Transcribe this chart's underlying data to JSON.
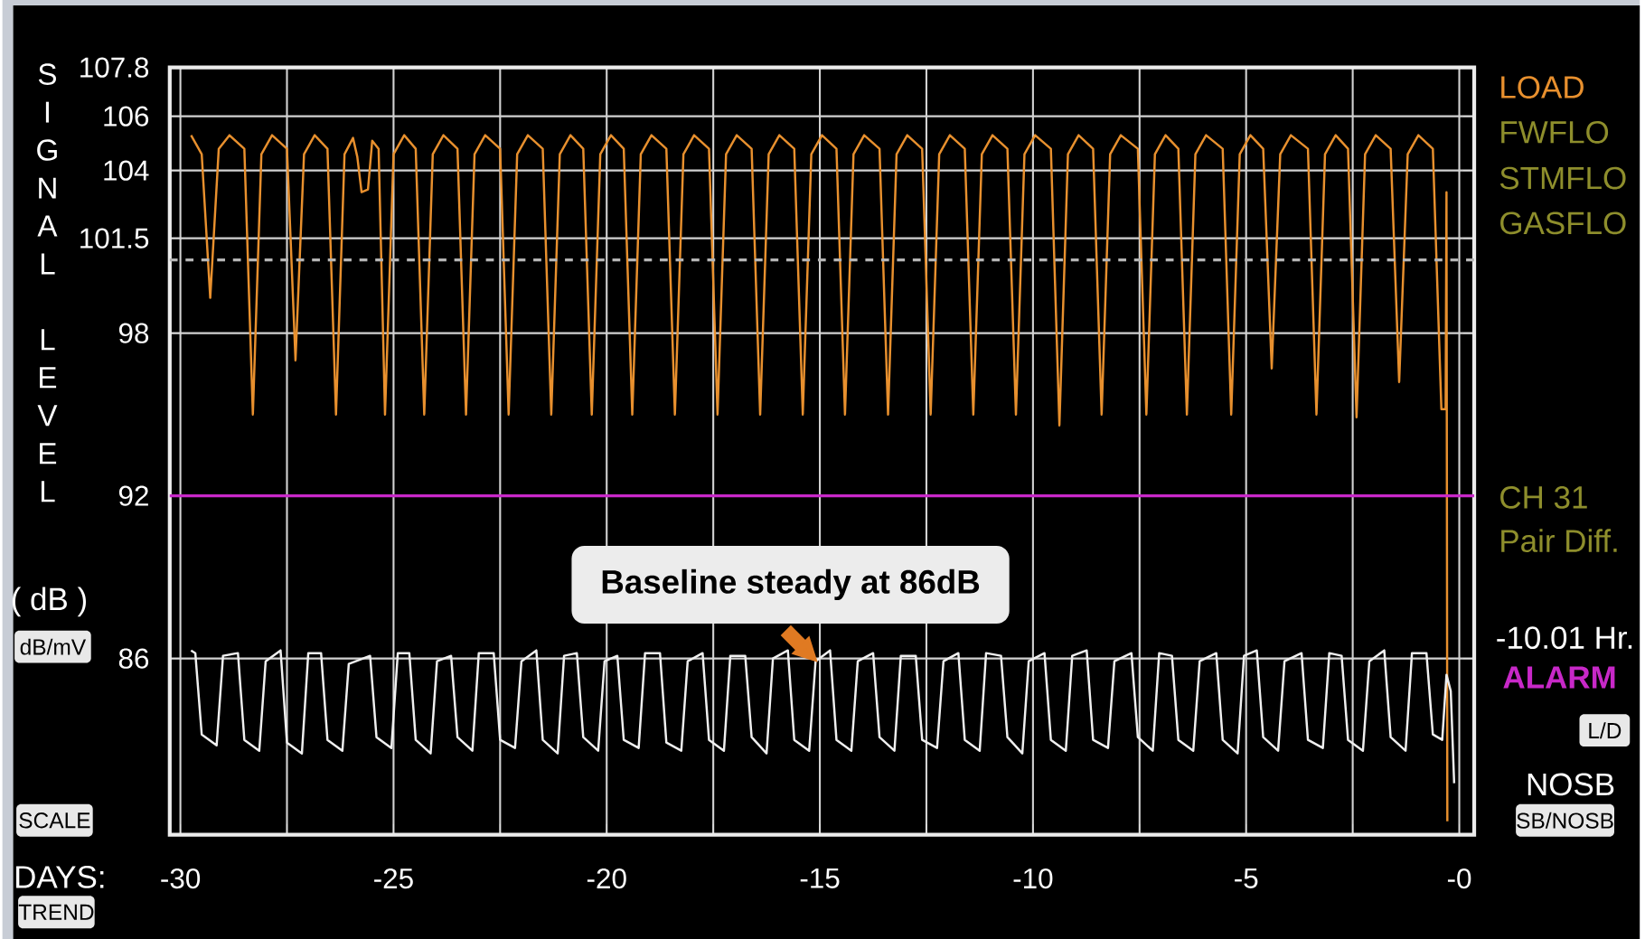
{
  "chart_data": {
    "type": "line",
    "xlabel": "DAYS:",
    "ylabel": "SIGNAL LEVEL",
    "xlim": [
      -30.25,
      0.35
    ],
    "ylim": [
      79.5,
      107.8
    ],
    "xticks": [
      -30,
      {
        "value": -27.5,
        "label": null
      },
      -25,
      {
        "value": -22.5,
        "label": null
      },
      -20,
      {
        "value": -17.5,
        "label": null
      },
      -15,
      {
        "value": -12.5,
        "label": null
      },
      -10,
      {
        "value": -7.5,
        "label": null
      },
      -5,
      {
        "value": -2.5,
        "label": null
      },
      {
        "value": 0,
        "label": "-0"
      }
    ],
    "yticks": [
      86,
      92,
      98,
      101.5,
      104,
      106,
      107.8
    ],
    "grid": true,
    "legend": "right",
    "series": [
      {
        "name": "LOAD",
        "color": "#e8902e",
        "x": [
          -29.75,
          -29.5,
          -29.3,
          -29.1,
          -28.85,
          -28.5,
          -28.3,
          -28.1,
          -27.85,
          -27.5,
          -27.3,
          -27.1,
          -26.85,
          -26.55,
          -26.35,
          -26.15,
          -25.95,
          -25.85,
          -25.75,
          -25.6,
          -25.5,
          -25.35,
          -25.2,
          -25.0,
          -24.75,
          -24.48,
          -24.28,
          -24.08,
          -23.83,
          -23.5,
          -23.3,
          -23.1,
          -22.85,
          -22.5,
          -22.3,
          -22.1,
          -21.85,
          -21.5,
          -21.3,
          -21.1,
          -20.85,
          -20.55,
          -20.35,
          -20.15,
          -19.9,
          -19.6,
          -19.4,
          -19.2,
          -18.95,
          -18.6,
          -18.4,
          -18.2,
          -17.95,
          -17.6,
          -17.4,
          -17.2,
          -16.95,
          -16.6,
          -16.4,
          -16.2,
          -15.95,
          -15.6,
          -15.4,
          -15.2,
          -14.95,
          -14.61,
          -14.41,
          -14.21,
          -13.96,
          -13.6,
          -13.4,
          -13.2,
          -12.95,
          -12.6,
          -12.4,
          -12.2,
          -11.95,
          -11.6,
          -11.4,
          -11.2,
          -10.95,
          -10.6,
          -10.4,
          -10.2,
          -9.95,
          -9.58,
          -9.38,
          -9.18,
          -8.93,
          -8.59,
          -8.39,
          -8.19,
          -7.94,
          -7.54,
          -7.34,
          -7.14,
          -6.89,
          -6.59,
          -6.39,
          -6.19,
          -5.94,
          -5.55,
          -5.35,
          -5.15,
          -4.9,
          -4.6,
          -4.4,
          -4.2,
          -3.95,
          -3.55,
          -3.35,
          -3.15,
          -2.9,
          -2.61,
          -2.41,
          -2.21,
          -1.96,
          -1.61,
          -1.41,
          -1.21,
          -0.96,
          -0.62,
          -0.42,
          -0.32,
          -0.3,
          -0.28
        ],
        "values": [
          105.3,
          104.6,
          99.3,
          104.8,
          105.3,
          104.8,
          95,
          104.6,
          105.3,
          104.8,
          97,
          104.6,
          105.3,
          104.8,
          95,
          104.6,
          105.2,
          104.5,
          103.2,
          103.3,
          105.1,
          104.8,
          95,
          104.6,
          105.3,
          104.8,
          95,
          104.6,
          105.3,
          104.8,
          95,
          104.6,
          105.3,
          104.8,
          95,
          104.6,
          105.3,
          104.8,
          95,
          104.6,
          105.3,
          104.8,
          95,
          104.6,
          105.3,
          104.8,
          95,
          104.6,
          105.3,
          104.8,
          95,
          104.6,
          105.3,
          104.8,
          95,
          104.6,
          105.3,
          104.8,
          95,
          104.6,
          105.3,
          104.8,
          95,
          104.6,
          105.3,
          104.8,
          95,
          104.6,
          105.3,
          104.8,
          95,
          104.6,
          105.3,
          104.8,
          95,
          104.6,
          105.3,
          104.8,
          95,
          104.6,
          105.3,
          104.8,
          95,
          104.6,
          105.3,
          104.8,
          94.6,
          104.6,
          105.3,
          104.8,
          95,
          104.6,
          105.3,
          104.8,
          95,
          104.6,
          105.3,
          104.8,
          95,
          104.6,
          105.3,
          104.8,
          95,
          104.6,
          105.3,
          104.8,
          96.7,
          104.6,
          105.3,
          104.8,
          95,
          104.6,
          105.3,
          104.8,
          94.9,
          104.6,
          105.3,
          104.8,
          96.2,
          104.6,
          105.3,
          104.8,
          95.2,
          95.2,
          103.2,
          80
        ]
      },
      {
        "color": "#f0f0f0",
        "x": [
          -29.75,
          -29.65,
          -29.5,
          -29.15,
          -29.0,
          -28.65,
          -28.5,
          -28.15,
          -28.0,
          -27.65,
          -27.5,
          -27.15,
          -27.0,
          -26.7,
          -26.55,
          -26.2,
          -26.05,
          -25.55,
          -25.4,
          -25.05,
          -24.9,
          -24.63,
          -24.48,
          -24.13,
          -23.98,
          -23.65,
          -23.5,
          -23.15,
          -23.0,
          -22.65,
          -22.5,
          -22.15,
          -22.0,
          -21.65,
          -21.5,
          -21.15,
          -21.0,
          -20.7,
          -20.55,
          -20.2,
          -20.05,
          -19.75,
          -19.6,
          -19.25,
          -19.1,
          -18.75,
          -18.6,
          -18.25,
          -18.1,
          -17.75,
          -17.6,
          -17.25,
          -17.1,
          -16.75,
          -16.6,
          -16.25,
          -16.1,
          -15.75,
          -15.6,
          -15.25,
          -15.1,
          -14.76,
          -14.61,
          -14.26,
          -14.11,
          -13.75,
          -13.6,
          -13.25,
          -13.1,
          -12.75,
          -12.6,
          -12.25,
          -12.1,
          -11.75,
          -11.6,
          -11.25,
          -11.1,
          -10.75,
          -10.6,
          -10.25,
          -10.1,
          -9.73,
          -9.58,
          -9.23,
          -9.08,
          -8.74,
          -8.59,
          -8.24,
          -8.09,
          -7.69,
          -7.54,
          -7.19,
          -7.04,
          -6.74,
          -6.59,
          -6.24,
          -6.09,
          -5.7,
          -5.55,
          -5.2,
          -5.05,
          -4.75,
          -4.6,
          -4.25,
          -4.1,
          -3.7,
          -3.55,
          -3.2,
          -3.05,
          -2.76,
          -2.61,
          -2.26,
          -2.11,
          -1.76,
          -1.61,
          -1.26,
          -1.11,
          -0.77,
          -0.62,
          -0.4,
          -0.3,
          -0.2,
          -0.12
        ],
        "values": [
          86.3,
          86.2,
          83.2,
          82.8,
          86.1,
          86.2,
          83,
          82.6,
          85.9,
          86.3,
          82.9,
          82.5,
          86.2,
          86.2,
          83,
          82.6,
          85.8,
          86.1,
          83.1,
          82.7,
          86.2,
          86.2,
          83,
          82.5,
          85.9,
          86.1,
          83.1,
          82.6,
          86.2,
          86.2,
          83,
          82.7,
          85.9,
          86.3,
          83,
          82.5,
          86.1,
          86.2,
          83.1,
          82.6,
          85.9,
          86.1,
          83,
          82.7,
          86.2,
          86.2,
          82.9,
          82.6,
          85.9,
          86.2,
          83,
          82.6,
          86.1,
          86.1,
          83.1,
          82.5,
          86,
          86.3,
          83,
          82.6,
          85.9,
          86.3,
          83,
          82.6,
          85.9,
          86.2,
          83.1,
          82.6,
          86.1,
          86.1,
          83,
          82.7,
          85.9,
          86.2,
          83,
          82.6,
          86.2,
          86.1,
          83.1,
          82.5,
          85.9,
          86.2,
          83,
          82.6,
          86.1,
          86.3,
          83,
          82.7,
          85.9,
          86.2,
          83.1,
          82.6,
          86.2,
          86.1,
          83,
          82.6,
          85.9,
          86.2,
          83,
          82.5,
          86.1,
          86.3,
          83.1,
          82.6,
          85.9,
          86.2,
          83,
          82.7,
          86.2,
          86.1,
          83,
          82.6,
          85.9,
          86.3,
          83.1,
          82.6,
          86.2,
          86.2,
          83.2,
          83,
          85.4,
          84.8,
          81.4
        ]
      }
    ],
    "ref_lines": [
      {
        "axis": "y",
        "value": 100.7,
        "label": null,
        "color": "#b4b4b4",
        "line_style": "dashed"
      },
      {
        "axis": "y",
        "value": 92,
        "label": "ALARM",
        "color": "#c828c8",
        "line_style": "solid"
      }
    ],
    "annotations": [
      "Baseline steady at 86dB",
      "FWFLO",
      "STMFLO",
      "GASFLO",
      "CH 31",
      "Pair Diff.",
      "-10.01 Hr.",
      "NOSB",
      "( dB )",
      "dB/mV",
      "SCALE",
      "TREND",
      "L/D",
      "SB/NOSB"
    ]
  }
}
